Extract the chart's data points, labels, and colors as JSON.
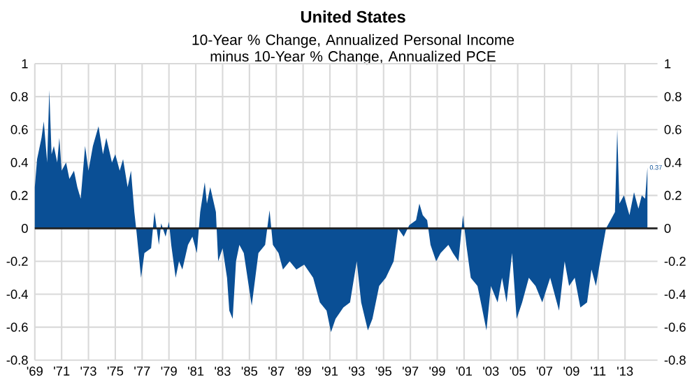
{
  "chart_data": {
    "type": "area",
    "title": "United States",
    "subtitle": "10-Year % Change, Annualized Personal Income minus 10-Year % Change, Annualized PCE",
    "x": [
      "1969-01",
      "1969-03",
      "1969-07",
      "1969-09",
      "1969-12",
      "1970-02",
      "1970-04",
      "1970-06",
      "1970-09",
      "1970-11",
      "1971-01",
      "1971-05",
      "1971-08",
      "1971-12",
      "1972-03",
      "1972-06",
      "1972-10",
      "1973-01",
      "1973-05",
      "1973-10",
      "1974-02",
      "1974-05",
      "1974-10",
      "1975-01",
      "1975-05",
      "1975-08",
      "1975-12",
      "1976-03",
      "1976-06",
      "1976-08",
      "1976-12",
      "1977-03",
      "1977-09",
      "1977-12",
      "1978-04",
      "1978-06",
      "1978-10",
      "1979-01",
      "1979-03",
      "1979-07",
      "1979-10",
      "1980-01",
      "1980-06",
      "1980-10",
      "1981-02",
      "1981-05",
      "1981-09",
      "1981-11",
      "1982-02",
      "1982-07",
      "1982-09",
      "1983-01",
      "1983-05",
      "1983-07",
      "1983-10",
      "1984-01",
      "1984-04",
      "1984-08",
      "1985-03",
      "1985-09",
      "1986-03",
      "1986-07",
      "1986-10",
      "1987-03",
      "1987-07",
      "1988-01",
      "1988-07",
      "1989-02",
      "1989-10",
      "1990-04",
      "1990-10",
      "1991-02",
      "1991-06",
      "1992-01",
      "1992-07",
      "1993-01",
      "1993-05",
      "1993-11",
      "1994-03",
      "1994-09",
      "1995-03",
      "1995-10",
      "1996-02",
      "1996-07",
      "1996-12",
      "1997-06",
      "1997-09",
      "1997-12",
      "1998-04",
      "1998-07",
      "1998-12",
      "1999-04",
      "1999-11",
      "2000-03",
      "2000-08",
      "2000-12",
      "2001-03",
      "2001-07",
      "2002-01",
      "2002-05",
      "2002-09",
      "2003-01",
      "2003-07",
      "2003-11",
      "2004-03",
      "2004-08",
      "2004-12",
      "2005-05",
      "2005-11",
      "2006-05",
      "2006-11",
      "2007-06",
      "2008-02",
      "2008-07",
      "2008-11",
      "2009-04",
      "2009-09",
      "2010-03",
      "2010-07",
      "2010-11",
      "2011-04",
      "2011-08",
      "2011-12",
      "2012-04",
      "2012-06",
      "2012-08",
      "2012-12",
      "2013-05",
      "2013-09",
      "2014-01",
      "2014-04",
      "2014-07",
      "2014-09"
    ],
    "series": [
      {
        "color": "#0a4f95",
        "values": [
          0.25,
          0.42,
          0.55,
          0.65,
          0.4,
          0.84,
          0.45,
          0.5,
          0.4,
          0.55,
          0.35,
          0.4,
          0.3,
          0.35,
          0.25,
          0.18,
          0.5,
          0.35,
          0.5,
          0.62,
          0.45,
          0.55,
          0.4,
          0.45,
          0.35,
          0.42,
          0.25,
          0.35,
          0.1,
          -0.02,
          -0.3,
          -0.15,
          -0.12,
          0.1,
          -0.1,
          0.03,
          -0.05,
          0.04,
          -0.1,
          -0.3,
          -0.2,
          -0.25,
          -0.1,
          -0.05,
          -0.15,
          0.1,
          0.28,
          0.15,
          0.25,
          0.1,
          -0.2,
          -0.12,
          -0.3,
          -0.5,
          -0.55,
          -0.2,
          -0.1,
          -0.15,
          -0.47,
          -0.15,
          -0.1,
          0.11,
          -0.1,
          -0.15,
          -0.25,
          -0.2,
          -0.25,
          -0.22,
          -0.3,
          -0.45,
          -0.5,
          -0.63,
          -0.55,
          -0.48,
          -0.45,
          -0.2,
          -0.45,
          -0.62,
          -0.55,
          -0.35,
          -0.3,
          -0.2,
          0.0,
          -0.05,
          0.02,
          0.05,
          0.15,
          0.08,
          0.05,
          -0.1,
          -0.2,
          -0.15,
          -0.1,
          -0.15,
          -0.2,
          0.08,
          -0.1,
          -0.3,
          -0.35,
          -0.48,
          -0.62,
          -0.35,
          -0.45,
          -0.3,
          -0.45,
          -0.15,
          -0.55,
          -0.45,
          -0.3,
          -0.35,
          -0.45,
          -0.3,
          -0.5,
          -0.2,
          -0.35,
          -0.3,
          -0.48,
          -0.45,
          -0.25,
          -0.35,
          -0.15,
          0.0,
          0.05,
          0.1,
          0.6,
          0.15,
          0.2,
          0.08,
          0.22,
          0.12,
          0.2,
          0.18,
          0.37
        ]
      }
    ],
    "xlim": [
      "1969-01",
      "2015-06"
    ],
    "xticks": [
      {
        "value": "1969",
        "label": "'69"
      },
      {
        "value": "1971",
        "label": "'71"
      },
      {
        "value": "1973",
        "label": "'73"
      },
      {
        "value": "1975",
        "label": "'75"
      },
      {
        "value": "1977",
        "label": "'77"
      },
      {
        "value": "1979",
        "label": "'79"
      },
      {
        "value": "1981",
        "label": "'81"
      },
      {
        "value": "1983",
        "label": "'83"
      },
      {
        "value": "1985",
        "label": "'85"
      },
      {
        "value": "1987",
        "label": "'87"
      },
      {
        "value": "1989",
        "label": "'89"
      },
      {
        "value": "1991",
        "label": "'91"
      },
      {
        "value": "1993",
        "label": "'93"
      },
      {
        "value": "1995",
        "label": "'95"
      },
      {
        "value": "1997",
        "label": "'97"
      },
      {
        "value": "1999",
        "label": "'99"
      },
      {
        "value": "2001",
        "label": "'01"
      },
      {
        "value": "2003",
        "label": "'03"
      },
      {
        "value": "2005",
        "label": "'05"
      },
      {
        "value": "2007",
        "label": "'07"
      },
      {
        "value": "2009",
        "label": "'09"
      },
      {
        "value": "2011",
        "label": "'11"
      },
      {
        "value": "2013",
        "label": "'13"
      }
    ],
    "ylim": [
      -0.8,
      1
    ],
    "yticks": [
      -0.8,
      -0.6,
      -0.4,
      -0.2,
      0,
      0.2,
      0.4,
      0.6,
      0.8,
      1
    ],
    "y2lim": [
      -0.8,
      1
    ],
    "y2ticks": [
      -0.8,
      -0.6,
      -0.4,
      -0.2,
      0,
      0.2,
      0.4,
      0.6,
      0.8,
      1
    ],
    "ref_lines": [
      {
        "axis": "y",
        "value": 0,
        "color": "#222222"
      }
    ],
    "annotations": [
      {
        "text": "0.37",
        "x": "2014-09",
        "y": 0.37
      }
    ],
    "grid": true
  }
}
